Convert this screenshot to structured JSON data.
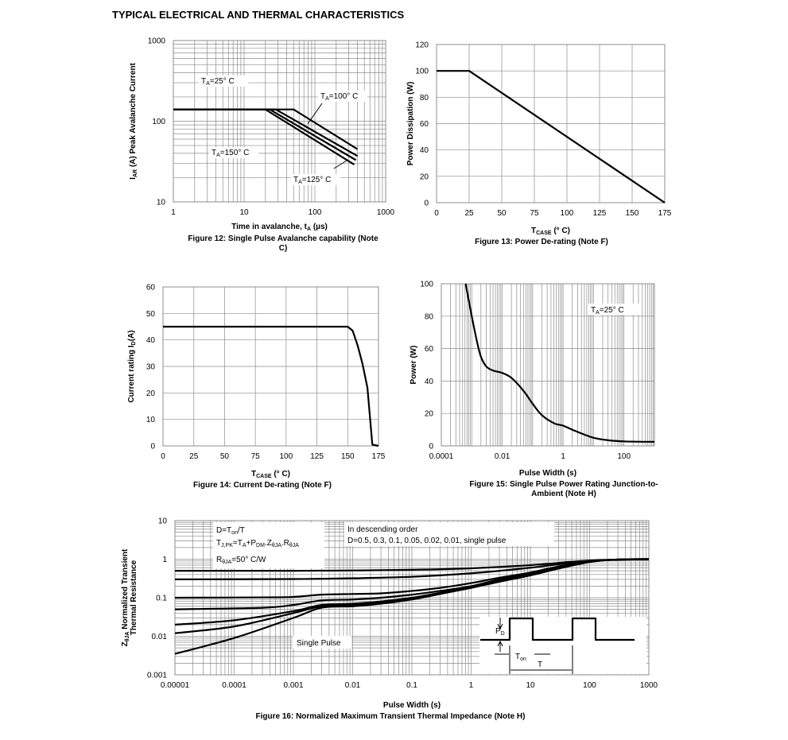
{
  "page": {
    "title": "TYPICAL ELECTRICAL AND THERMAL CHARACTERISTICS"
  },
  "chart_data": [
    {
      "id": "fig12",
      "type": "line",
      "caption": [
        "Figure 12: Single Pulse Avalanche capability (Note",
        "C)"
      ],
      "xlabel": {
        "main": "Time in avalanche, t",
        "sub": "A",
        "unit": " (µs)"
      },
      "ylabel": {
        "pre": "I",
        "sub": "AR",
        "post": " (A) Peak Avalanche Current"
      },
      "xscale": "log",
      "yscale": "log",
      "xlim": [
        1,
        1000
      ],
      "ylim": [
        10,
        1000
      ],
      "xticks": [
        1,
        10,
        100,
        1000
      ],
      "xtick_labels": [
        "1",
        "10",
        "100",
        "1000"
      ],
      "yticks": [
        10,
        100,
        1000
      ],
      "ytick_labels": [
        "10",
        "100",
        "1000"
      ],
      "grid": true,
      "series": [
        {
          "name": "TA=25° C",
          "x": [
            1,
            50,
            400
          ],
          "y": [
            140,
            140,
            45
          ]
        },
        {
          "name": "TA=100° C",
          "x": [
            1,
            28,
            400
          ],
          "y": [
            140,
            140,
            37
          ]
        },
        {
          "name": "TA=125° C",
          "x": [
            1,
            23,
            380
          ],
          "y": [
            140,
            140,
            33
          ]
        },
        {
          "name": "TA=150° C",
          "x": [
            1,
            20,
            360
          ],
          "y": [
            140,
            140,
            29
          ]
        }
      ],
      "annotations": [
        {
          "pre": "T",
          "sub": "A",
          "post": "=25° C"
        },
        {
          "pre": "T",
          "sub": "A",
          "post": "=100° C"
        },
        {
          "pre": "T",
          "sub": "A",
          "post": "=150° C"
        },
        {
          "pre": "T",
          "sub": "A",
          "post": "=125° C"
        }
      ]
    },
    {
      "id": "fig13",
      "type": "line",
      "caption": [
        "Figure 13: Power De-rating (Note F)"
      ],
      "xlabel": {
        "main": "T",
        "sub": "CASE",
        "unit": " (° C)"
      },
      "ylabel": {
        "pre": "Power Dissipation (W)",
        "sub": "",
        "post": ""
      },
      "xscale": "linear",
      "yscale": "linear",
      "xlim": [
        0,
        175
      ],
      "ylim": [
        0,
        120
      ],
      "xticks": [
        0,
        25,
        50,
        75,
        100,
        125,
        150,
        175
      ],
      "xtick_labels": [
        "0",
        "25",
        "50",
        "75",
        "100",
        "125",
        "150",
        "175"
      ],
      "yticks": [
        0,
        20,
        40,
        60,
        80,
        100,
        120
      ],
      "ytick_labels": [
        "0",
        "20",
        "40",
        "60",
        "80",
        "100",
        "120"
      ],
      "grid": true,
      "series": [
        {
          "x": [
            0,
            25,
            175
          ],
          "y": [
            100,
            100,
            0
          ]
        }
      ]
    },
    {
      "id": "fig14",
      "type": "line",
      "caption": [
        "Figure 14: Current De-rating (Note F)"
      ],
      "xlabel": {
        "main": "T",
        "sub": "CASE",
        "unit": " (° C)"
      },
      "ylabel": {
        "pre": "Current rating I",
        "sub": "D",
        "post": "(A)"
      },
      "xscale": "linear",
      "yscale": "linear",
      "xlim": [
        0,
        175
      ],
      "ylim": [
        0,
        60
      ],
      "xticks": [
        0,
        25,
        50,
        75,
        100,
        125,
        150,
        175
      ],
      "xtick_labels": [
        "0",
        "25",
        "50",
        "75",
        "100",
        "125",
        "150",
        "175"
      ],
      "yticks": [
        0,
        10,
        20,
        30,
        40,
        50,
        60
      ],
      "ytick_labels": [
        "0",
        "10",
        "20",
        "30",
        "40",
        "50",
        "60"
      ],
      "grid": true,
      "series": [
        {
          "x": [
            0,
            150,
            154,
            158,
            162,
            166,
            170,
            175
          ],
          "y": [
            45,
            45,
            43.5,
            38,
            31,
            22,
            0.5,
            0
          ]
        }
      ]
    },
    {
      "id": "fig15",
      "type": "line",
      "caption": [
        "Figure 15: Single Pulse Power Rating Junction-to-",
        "Ambient (Note H)"
      ],
      "xlabel": {
        "main": "Pulse Width (s)",
        "sub": "",
        "unit": ""
      },
      "ylabel": {
        "pre": "Power (W)",
        "sub": "",
        "post": ""
      },
      "xscale": "log",
      "yscale": "linear",
      "xlim": [
        0.0001,
        1000
      ],
      "ylim": [
        0,
        100
      ],
      "xticks": [
        0.0001,
        0.01,
        1,
        100
      ],
      "xtick_labels": [
        "0.0001",
        "0.01",
        "1",
        "100"
      ],
      "yticks": [
        0,
        20,
        40,
        60,
        80,
        100
      ],
      "ytick_labels": [
        "0",
        "20",
        "40",
        "60",
        "80",
        "100"
      ],
      "grid": true,
      "series": [
        {
          "name": "TA=25° C",
          "x": [
            0.00063,
            0.001,
            0.0015,
            0.002,
            0.003,
            0.005,
            0.01,
            0.02,
            0.05,
            0.1,
            0.2,
            0.5,
            1,
            2,
            5,
            10,
            30,
            100,
            1000
          ],
          "y": [
            100,
            80,
            64,
            55,
            49,
            46.5,
            45,
            42,
            34,
            26,
            19,
            14,
            12.5,
            10,
            7,
            5,
            3.5,
            2.8,
            2.5
          ]
        }
      ],
      "annotations": [
        {
          "pre": "T",
          "sub": "A",
          "post": "=25° C"
        }
      ]
    },
    {
      "id": "fig16",
      "type": "line",
      "caption": [
        "Figure 16: Normalized Maximum Transient Thermal Impedance (Note H)"
      ],
      "xlabel": {
        "main": "Pulse Width (s)",
        "sub": "",
        "unit": ""
      },
      "ylabel": {
        "line1_pre": "Z",
        "line1_sub": "θJA",
        "line1_post": " Normalized Transient",
        "line2": "Thermal Resistance"
      },
      "xscale": "log",
      "yscale": "log",
      "xlim": [
        1e-05,
        1000
      ],
      "ylim": [
        0.001,
        10
      ],
      "xticks": [
        1e-05,
        0.0001,
        0.001,
        0.01,
        0.1,
        1,
        10,
        100,
        1000
      ],
      "xtick_labels": [
        "0.00001",
        "0.0001",
        "0.001",
        "0.01",
        "0.1",
        "1",
        "10",
        "100",
        "1000"
      ],
      "yticks": [
        0.001,
        0.01,
        0.1,
        1,
        10
      ],
      "ytick_labels": [
        "0.001",
        "0.01",
        "0.1",
        "1",
        "10"
      ],
      "grid": true,
      "series": [
        {
          "name": "D=0.5",
          "x": [
            1e-05,
            0.001,
            0.01,
            0.1,
            1,
            10,
            100,
            1000
          ],
          "y": [
            0.5,
            0.5,
            0.51,
            0.53,
            0.58,
            0.7,
            0.92,
            1
          ]
        },
        {
          "name": "D=0.3",
          "x": [
            1e-05,
            0.001,
            0.01,
            0.1,
            1,
            10,
            100,
            1000
          ],
          "y": [
            0.3,
            0.305,
            0.32,
            0.35,
            0.43,
            0.6,
            0.9,
            1
          ]
        },
        {
          "name": "D=0.1",
          "x": [
            1e-05,
            0.0003,
            0.001,
            0.003,
            0.01,
            0.03,
            0.1,
            0.3,
            1,
            3,
            10,
            30,
            100,
            300,
            1000
          ],
          "y": [
            0.1,
            0.102,
            0.105,
            0.12,
            0.125,
            0.13,
            0.15,
            0.18,
            0.24,
            0.33,
            0.45,
            0.65,
            0.88,
            0.98,
            1
          ]
        },
        {
          "name": "D=0.05",
          "x": [
            1e-05,
            0.0003,
            0.001,
            0.003,
            0.01,
            0.03,
            0.1,
            0.3,
            1,
            3,
            10,
            30,
            100,
            300,
            1000
          ],
          "y": [
            0.05,
            0.055,
            0.065,
            0.085,
            0.09,
            0.1,
            0.12,
            0.15,
            0.2,
            0.3,
            0.42,
            0.62,
            0.87,
            0.98,
            1
          ]
        },
        {
          "name": "D=0.02",
          "x": [
            1e-05,
            0.0001,
            0.001,
            0.003,
            0.01,
            0.03,
            0.1,
            0.3,
            1,
            3,
            10,
            30,
            100,
            300,
            1000
          ],
          "y": [
            0.02,
            0.026,
            0.045,
            0.065,
            0.07,
            0.08,
            0.1,
            0.135,
            0.19,
            0.28,
            0.4,
            0.6,
            0.86,
            0.98,
            1
          ]
        },
        {
          "name": "D=0.01",
          "x": [
            1e-05,
            0.0001,
            0.001,
            0.003,
            0.01,
            0.03,
            0.1,
            0.3,
            1,
            3,
            10,
            30,
            100,
            300,
            1000
          ],
          "y": [
            0.012,
            0.018,
            0.04,
            0.06,
            0.065,
            0.075,
            0.095,
            0.13,
            0.185,
            0.27,
            0.39,
            0.58,
            0.85,
            0.98,
            1
          ]
        },
        {
          "name": "single pulse",
          "x": [
            1e-05,
            0.0001,
            0.001,
            0.003,
            0.01,
            0.03,
            0.1,
            0.3,
            1,
            3,
            10,
            30,
            100,
            300,
            1000
          ],
          "y": [
            0.0035,
            0.009,
            0.03,
            0.055,
            0.06,
            0.07,
            0.09,
            0.125,
            0.18,
            0.26,
            0.38,
            0.57,
            0.84,
            0.98,
            1
          ]
        }
      ],
      "annotations": {
        "box1_line1": {
          "pre": "D=T",
          "sub": "on",
          "post": "/T"
        },
        "box1_line2": {
          "pre": "T",
          "sub": "J,PK",
          "mid": "=T",
          "sub2": "A",
          "mid2": "+P",
          "sub3": "DM",
          "mid3": ".Z",
          "sub4": "θJA",
          "mid4": ".R",
          "sub5": "θJA"
        },
        "box1_line3": {
          "pre": "R",
          "sub": "θJA",
          "post": "=50° C/W"
        },
        "box2_line1": "In descending order",
        "box2_line2": "D=0.5, 0.3, 0.1, 0.05, 0.02, 0.01, single pulse",
        "single_pulse": "Single Pulse",
        "inset_pd": {
          "pre": "P",
          "sub": "D"
        },
        "inset_ton": {
          "pre": "T",
          "sub": "on"
        },
        "inset_t": "T"
      }
    }
  ]
}
